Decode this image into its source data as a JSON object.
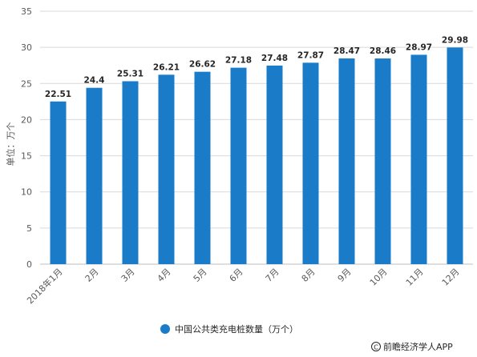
{
  "chart_data": {
    "type": "bar",
    "categories": [
      "2018年1月",
      "2月",
      "3月",
      "4月",
      "5月",
      "6月",
      "7月",
      "8月",
      "9月",
      "10月",
      "11月",
      "12月"
    ],
    "series": [
      {
        "name": "中国公共类充电桩数量（万个）",
        "values": [
          22.51,
          24.4,
          25.31,
          26.21,
          26.62,
          27.18,
          27.48,
          27.87,
          28.47,
          28.46,
          28.97,
          29.98
        ]
      }
    ],
    "data_labels": [
      "22.51",
      "24.4",
      "25.31",
      "26.21",
      "26.62",
      "27.18",
      "27.48",
      "27.87",
      "28.47",
      "28.46",
      "28.97",
      "29.98"
    ],
    "ylabel": "单位：万个",
    "ylim": [
      0,
      35
    ],
    "yticks": [
      0,
      5,
      10,
      15,
      20,
      25,
      30,
      35
    ],
    "grid": true,
    "legend_position": "bottom",
    "bar_color": "#1a7bc9"
  },
  "source": "前瞻经济学人APP",
  "source_icon": "copyright-icon"
}
